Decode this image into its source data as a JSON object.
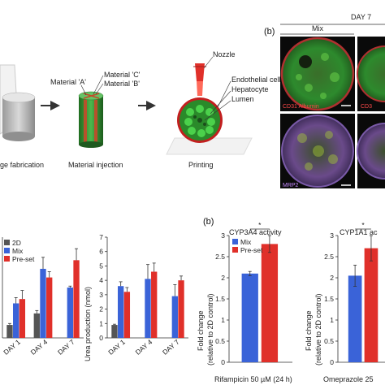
{
  "top_schematic": {
    "step1_label": "ge fabrication",
    "step2_label": "Material injection",
    "step3_label": "Printing",
    "material_a": "Material 'A'",
    "material_c": "Material 'C'",
    "material_b": "Material 'B'",
    "nozzle": "Nozzle",
    "endothelial": "Endothelial cells",
    "hepatocyte": "Hepatocyte",
    "lumen": "Lumen"
  },
  "top_right": {
    "panel_letter": "(b)",
    "day_label": "DAY 7",
    "mix_label": "Mix",
    "stain1": "CD31 Albumin",
    "stain2": "CD3",
    "stain3": "MRP2"
  },
  "bottom_left": {
    "charts": [
      {
        "type": "bar",
        "categories": [
          "DAY 1",
          "DAY 4",
          "DAY 7"
        ],
        "series": [
          {
            "name": "2D",
            "color": "#555555",
            "values": [
              0.45,
              0.85,
              null
            ],
            "errors": [
              0.05,
              0.1,
              null
            ]
          },
          {
            "name": "Mix",
            "color": "#3a63d8",
            "values": [
              1.2,
              2.4,
              1.75
            ],
            "errors": [
              0.2,
              0.4,
              0.05
            ]
          },
          {
            "name": "Pre-set",
            "color": "#e0302a",
            "values": [
              1.35,
              2.1,
              2.7
            ],
            "errors": [
              0.3,
              0.2,
              0.4
            ]
          }
        ],
        "ylim": [
          0,
          3.5
        ],
        "yticks": [],
        "ylabel": ""
      },
      {
        "type": "bar",
        "categories": [
          "DAY 1",
          "DAY 4",
          "DAY 7"
        ],
        "series": [
          {
            "name": "2D",
            "color": "#555555",
            "values": [
              0.9,
              null,
              null
            ],
            "errors": [
              0.05,
              null,
              null
            ]
          },
          {
            "name": "Mix",
            "color": "#3a63d8",
            "values": [
              3.6,
              4.1,
              2.9
            ],
            "errors": [
              0.3,
              1.0,
              0.8
            ]
          },
          {
            "name": "Pre-set",
            "color": "#e0302a",
            "values": [
              3.2,
              4.6,
              4.0
            ],
            "errors": [
              0.3,
              0.6,
              0.3
            ]
          }
        ],
        "ylim": [
          0,
          7
        ],
        "yticks": [
          "0",
          "1",
          "2",
          "3",
          "4",
          "5",
          "6",
          "7"
        ],
        "ylabel": "Urea production (nmol)"
      }
    ],
    "legend": [
      "2D",
      "Mix",
      "Pre-set"
    ]
  },
  "bottom_right": {
    "panel_letter": "(b)",
    "charts": [
      {
        "type": "bar",
        "title": "CYP3A4 activity",
        "categories": [
          "Mix",
          "Pre-set"
        ],
        "values": [
          2.1,
          2.8
        ],
        "errors": [
          0.05,
          0.2
        ],
        "colors": [
          "#3a63d8",
          "#e0302a"
        ],
        "ylim": [
          0,
          3
        ],
        "yticks": [
          "0",
          "0.5",
          "1",
          "1.5",
          "2",
          "2.5",
          "3"
        ],
        "ylabel": "Fold change",
        "ylabel2": "(relative to 2D control)",
        "significance": "*",
        "xlabel": "Rifampicin 50 µM (24 h)",
        "legend": [
          "Mix",
          "Pre-set"
        ]
      },
      {
        "type": "bar",
        "title": "CYP1A1 ac",
        "categories": [
          "Mix",
          "Pre-set"
        ],
        "values": [
          2.05,
          2.7
        ],
        "errors": [
          0.25,
          0.3
        ],
        "colors": [
          "#3a63d8",
          "#e0302a"
        ],
        "ylim": [
          0,
          3
        ],
        "yticks": [
          "0",
          "0.5",
          "1",
          "1.5",
          "2",
          "2.5",
          "3"
        ],
        "ylabel": "Fold change",
        "ylabel2": "(relative to 2D control)",
        "significance": "*",
        "xlabel": "Omeprazole 25"
      }
    ]
  }
}
